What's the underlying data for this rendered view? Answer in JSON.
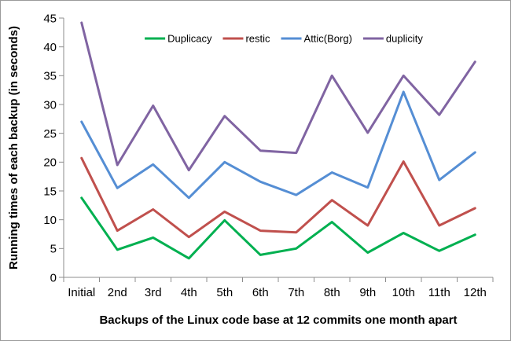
{
  "window": {
    "background": "#ffffff",
    "border_color": "#9a9a9a"
  },
  "chart_data": {
    "type": "line",
    "title": "",
    "xlabel": "Backups of the Linux code base at 12 commits one month apart",
    "ylabel": "Running times of each backup  (in seconds)",
    "categories": [
      "Initial",
      "2nd",
      "3rd",
      "4th",
      "5th",
      "6th",
      "7th",
      "8th",
      "9th",
      "10th",
      "11th",
      "12th"
    ],
    "series": [
      {
        "name": "Duplicacy",
        "color": "#00B050",
        "values": [
          13.8,
          4.8,
          6.9,
          3.3,
          9.9,
          3.9,
          5.0,
          9.6,
          4.3,
          7.7,
          4.6,
          7.4
        ]
      },
      {
        "name": "restic",
        "color": "#C0504D",
        "values": [
          20.7,
          8.1,
          11.8,
          7.0,
          11.4,
          8.1,
          7.8,
          13.4,
          9.0,
          20.1,
          9.0,
          12.0
        ]
      },
      {
        "name": "Attic(Borg)",
        "color": "#558ED4",
        "values": [
          27.0,
          15.5,
          19.6,
          13.8,
          20.0,
          16.6,
          14.3,
          18.2,
          15.6,
          32.2,
          16.9,
          21.7
        ]
      },
      {
        "name": "duplicity",
        "color": "#8064A2",
        "values": [
          44.2,
          19.5,
          29.8,
          18.6,
          28.0,
          22.0,
          21.6,
          35.0,
          25.1,
          35.0,
          28.2,
          37.4
        ]
      }
    ],
    "ylim": [
      0,
      45
    ],
    "ytick_step": 5,
    "ytick_labels": [
      "0",
      "5",
      "10",
      "15",
      "20",
      "25",
      "30",
      "35",
      "40",
      "45"
    ],
    "grid": false,
    "legend_position": "top-center",
    "legend_entries": [
      "Duplicacy",
      "restic",
      "Attic(Borg)",
      "duplicity"
    ],
    "axis_color": "#8C8C8C",
    "text_color": "#000000",
    "line_width": 3
  }
}
